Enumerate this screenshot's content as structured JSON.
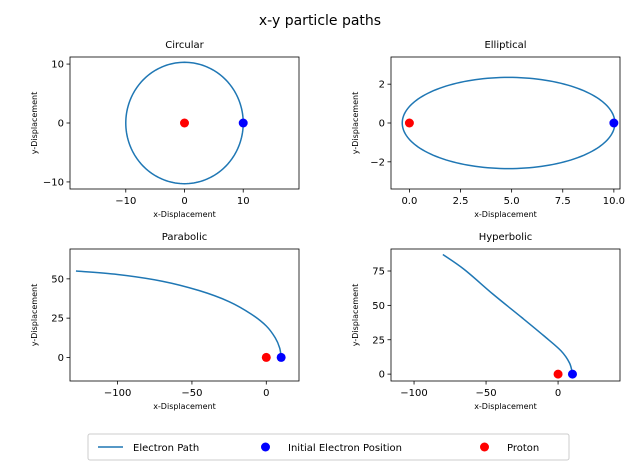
{
  "figure": {
    "title": "x-y particle paths"
  },
  "colors": {
    "path": "#1f77b4",
    "initial": "#0000ff",
    "proton": "#ff0000"
  },
  "legend": {
    "placement": "bottom-center",
    "entries": [
      {
        "label": "Electron Path",
        "marker": "line",
        "color": "#1f77b4"
      },
      {
        "label": "Initial Electron Position",
        "marker": "circle",
        "color": "#0000ff"
      },
      {
        "label": "Proton",
        "marker": "circle",
        "color": "#ff0000"
      }
    ]
  },
  "chart_data": [
    {
      "type": "line",
      "title": "Circular",
      "xlabel": "x-Displacement",
      "ylabel": "y-Displacement",
      "xlim": [
        -19.5,
        19.5
      ],
      "ylim": [
        -11.2,
        11.2
      ],
      "xticks": [
        -10,
        0,
        10
      ],
      "yticks": [
        -10,
        0,
        10
      ],
      "path": {
        "kind": "ellipse",
        "center": [
          0,
          0
        ],
        "rx": 10,
        "ry": 10.3
      },
      "initial_position": [
        10,
        0
      ],
      "proton": [
        0,
        0
      ]
    },
    {
      "type": "line",
      "title": "Elliptical",
      "xlabel": "x-Displacement",
      "ylabel": "y-Displacement",
      "xlim": [
        -0.9,
        10.3
      ],
      "ylim": [
        -3.4,
        3.4
      ],
      "xticks": [
        0.0,
        2.5,
        5.0,
        7.5,
        10.0
      ],
      "yticks": [
        -2,
        0,
        2
      ],
      "path": {
        "kind": "ellipse",
        "center": [
          4.85,
          0
        ],
        "rx": 5.2,
        "ry": 2.35
      },
      "initial_position": [
        10,
        0
      ],
      "proton": [
        0,
        0
      ]
    },
    {
      "type": "line",
      "title": "Parabolic",
      "xlabel": "x-Displacement",
      "ylabel": "y-Displacement",
      "xlim": [
        -132,
        22
      ],
      "ylim": [
        -15,
        69
      ],
      "xticks": [
        -100,
        -50,
        0
      ],
      "yticks": [
        0,
        25,
        50
      ],
      "path": {
        "kind": "points",
        "x": [
          10,
          9,
          6,
          0,
          -10,
          -25,
          -45,
          -70,
          -100,
          -128
        ],
        "y": [
          0,
          6,
          12.5,
          20,
          27.5,
          35.5,
          42.5,
          48.5,
          52.8,
          55
        ]
      },
      "initial_position": [
        10,
        0
      ],
      "proton": [
        0,
        0
      ]
    },
    {
      "type": "line",
      "title": "Hyperbolic",
      "xlabel": "x-Displacement",
      "ylabel": "y-Displacement",
      "xlim": [
        -116,
        43
      ],
      "ylim": [
        -5,
        91
      ],
      "xticks": [
        -100,
        -50,
        0
      ],
      "yticks": [
        0,
        25,
        50,
        75
      ],
      "path": {
        "kind": "points",
        "x": [
          10,
          8,
          2,
          -10,
          -25,
          -45,
          -65,
          -80
        ],
        "y": [
          0,
          8,
          17,
          28,
          41,
          58,
          76,
          87
        ]
      },
      "initial_position": [
        10,
        0
      ],
      "proton": [
        0,
        0
      ]
    }
  ]
}
